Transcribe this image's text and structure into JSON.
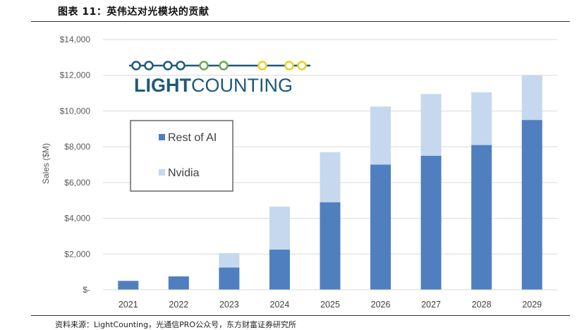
{
  "figure": {
    "title": "图表 11：英伟达对光模块的贡献",
    "source": "资料来源：LightCounting，光通信PRO公众号，东方财富证券研究所"
  },
  "logo": {
    "text_bold": "LIGHT",
    "text_regular": "COUNTING",
    "colors": {
      "teal": "#1c5a7a",
      "green": "#6aa84f",
      "yellow": "#e6d21e"
    }
  },
  "chart_data": {
    "type": "bar",
    "stacked": true,
    "categories": [
      "2021",
      "2022",
      "2023",
      "2024",
      "2025",
      "2026",
      "2027",
      "2028",
      "2029"
    ],
    "series": [
      {
        "name": "Rest of AI",
        "color": "#4f7fbf",
        "values": [
          500,
          750,
          1250,
          2250,
          4900,
          7000,
          7500,
          8100,
          9500
        ]
      },
      {
        "name": "Nvidia",
        "color": "#c5d8ee",
        "values": [
          0,
          0,
          800,
          2400,
          2800,
          3250,
          3450,
          2950,
          2500
        ]
      }
    ],
    "ylabel": "Sales ($M)",
    "xlabel": "",
    "ylim": [
      0,
      14000
    ],
    "yticks": [
      0,
      2000,
      4000,
      6000,
      8000,
      10000,
      12000,
      14000
    ],
    "ytick_labels": [
      "$-",
      "$2,000",
      "$4,000",
      "$6,000",
      "$8,000",
      "$10,000",
      "$12,000",
      "$14,000"
    ],
    "grid": true,
    "legend": {
      "position": "upper-left",
      "entries": [
        "Rest of AI",
        "Nvidia"
      ]
    }
  }
}
